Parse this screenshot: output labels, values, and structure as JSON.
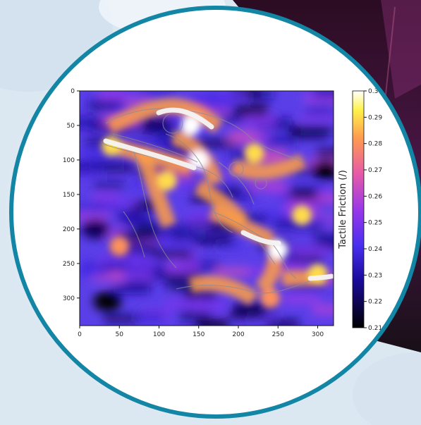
{
  "chart_data": {
    "type": "heatmap",
    "title": "",
    "xlabel": "",
    "ylabel": "",
    "colorbar_label": "Tactile Friction (/)",
    "colormap": "gnuplot2-like (black-blue-purple-pink-yellow-white)",
    "xlim": [
      0,
      320
    ],
    "ylim": [
      340,
      0
    ],
    "x_ticks": [
      "0",
      "50",
      "100",
      "150",
      "200",
      "250",
      "300"
    ],
    "y_ticks": [
      "0",
      "50",
      "100",
      "150",
      "200",
      "250",
      "300"
    ],
    "colorbar_range": [
      0.21,
      0.3
    ],
    "colorbar_ticks": [
      "0.30",
      "0.29",
      "0.28",
      "0.27",
      "0.26",
      "0.25",
      "0.24",
      "0.23",
      "0.22",
      "0.21"
    ],
    "grid": false,
    "overlay": "grey contour lines of the imaged object",
    "high_friction_regions": [
      {
        "x": 140,
        "y": 50,
        "value": 0.3
      },
      {
        "x": 150,
        "y": 100,
        "value": 0.3
      },
      {
        "x": 40,
        "y": 80,
        "value": 0.29
      },
      {
        "x": 110,
        "y": 130,
        "value": 0.29
      },
      {
        "x": 220,
        "y": 90,
        "value": 0.29
      },
      {
        "x": 250,
        "y": 230,
        "value": 0.3
      },
      {
        "x": 280,
        "y": 180,
        "value": 0.29
      },
      {
        "x": 300,
        "y": 265,
        "value": 0.29
      },
      {
        "x": 50,
        "y": 225,
        "value": 0.28
      },
      {
        "x": 240,
        "y": 300,
        "value": 0.28
      }
    ],
    "low_friction_regions": [
      {
        "x": 35,
        "y": 305,
        "value": 0.21
      },
      {
        "x": 310,
        "y": 115,
        "value": 0.21
      },
      {
        "x": 20,
        "y": 200,
        "value": 0.22
      }
    ],
    "background_value": 0.235
  },
  "colors": {
    "ring": "#1386a6",
    "figure_bg": "#ffffff",
    "page_bg": "#e6eef5",
    "panel_dark": "#2a1030"
  }
}
